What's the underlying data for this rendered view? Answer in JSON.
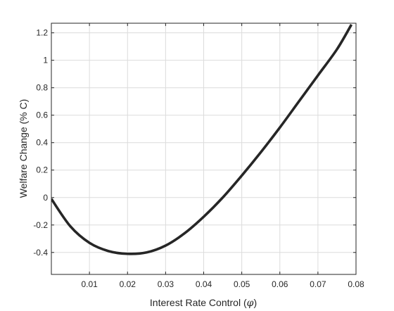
{
  "chart_data": {
    "type": "line",
    "title": "",
    "xlabel": "Interest Rate Control",
    "xlabel_symbol": "φ",
    "ylabel": "Welfare Change (% C)",
    "xlim": [
      0,
      0.08
    ],
    "ylim": [
      -0.56,
      1.27
    ],
    "grid": true,
    "xticks": [
      {
        "value": 0.01,
        "label": "0.01"
      },
      {
        "value": 0.02,
        "label": "0.02"
      },
      {
        "value": 0.03,
        "label": "0.03"
      },
      {
        "value": 0.04,
        "label": "0.04"
      },
      {
        "value": 0.05,
        "label": "0.05"
      },
      {
        "value": 0.06,
        "label": "0.06"
      },
      {
        "value": 0.07,
        "label": "0.07"
      },
      {
        "value": 0.08,
        "label": "0.08"
      }
    ],
    "yticks": [
      {
        "value": -0.4,
        "label": "-0.4"
      },
      {
        "value": -0.2,
        "label": "-0.2"
      },
      {
        "value": 0,
        "label": "0"
      },
      {
        "value": 0.2,
        "label": "0.2"
      },
      {
        "value": 0.4,
        "label": "0.4"
      },
      {
        "value": 0.6,
        "label": "0.6"
      },
      {
        "value": 0.8,
        "label": "0.8"
      },
      {
        "value": 1.0,
        "label": "1"
      },
      {
        "value": 1.2,
        "label": "1.2"
      }
    ],
    "series": [
      {
        "color": "#262626",
        "x": [
          0.0,
          0.005,
          0.01,
          0.015,
          0.02,
          0.025,
          0.03,
          0.035,
          0.04,
          0.045,
          0.05,
          0.055,
          0.06,
          0.065,
          0.07,
          0.075,
          0.0788
        ],
        "y": [
          -0.01,
          -0.21,
          -0.33,
          -0.39,
          -0.41,
          -0.4,
          -0.35,
          -0.26,
          -0.14,
          0.0,
          0.16,
          0.33,
          0.51,
          0.7,
          0.89,
          1.08,
          1.26
        ]
      }
    ]
  }
}
